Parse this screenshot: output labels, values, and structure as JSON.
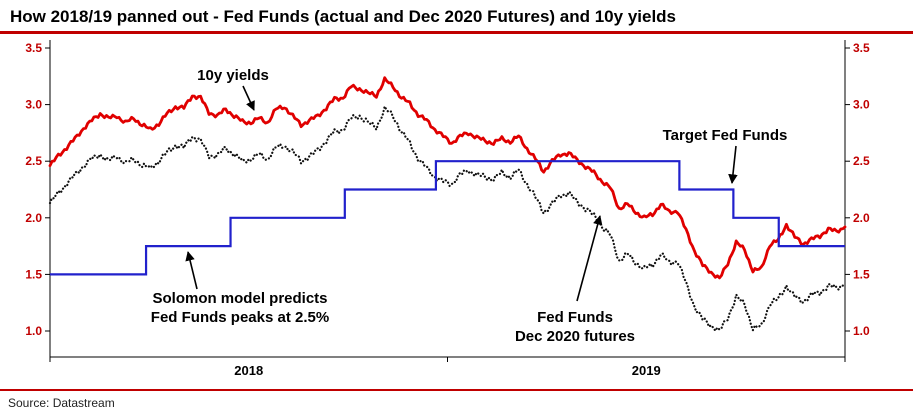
{
  "footer": {
    "source": "Source: Datastream"
  },
  "chart_data": {
    "type": "line",
    "title": "How 2018/19 panned out - Fed Funds (actual and Dec 2020 Futures) and 10y yields",
    "title_underline_color": "#c00000",
    "x_axis": {
      "start": "Jan 2018",
      "end": "Dec 2019",
      "unit": "month",
      "year_labels": [
        {
          "label": "2018",
          "center_month": 6
        },
        {
          "label": "2019",
          "center_month": 18
        }
      ]
    },
    "y_axis": {
      "ticks": [
        3.5,
        3.0,
        2.5,
        2.0,
        1.5,
        1.0
      ],
      "range": [
        0.77,
        3.57
      ],
      "sides": "both",
      "tick_color": "#c00000",
      "grid": false
    },
    "legend": "annotated labels with arrows, no legend box",
    "series": [
      {
        "name": "10y yields",
        "type": "line",
        "style": "solid",
        "color": "#e00000",
        "points_per_month": 4,
        "values": [
          2.46,
          2.55,
          2.62,
          2.7,
          2.79,
          2.86,
          2.92,
          2.88,
          2.9,
          2.84,
          2.88,
          2.82,
          2.78,
          2.83,
          2.92,
          2.98,
          2.97,
          3.08,
          3.06,
          2.93,
          2.9,
          2.96,
          2.9,
          2.85,
          2.84,
          2.88,
          2.84,
          2.96,
          2.98,
          2.9,
          2.82,
          2.86,
          2.9,
          2.97,
          3.05,
          3.06,
          3.16,
          3.14,
          3.1,
          3.08,
          3.22,
          3.16,
          3.06,
          3.01,
          2.91,
          2.86,
          2.78,
          2.72,
          2.66,
          2.72,
          2.75,
          2.71,
          2.68,
          2.66,
          2.7,
          2.67,
          2.72,
          2.61,
          2.52,
          2.41,
          2.5,
          2.56,
          2.57,
          2.51,
          2.45,
          2.4,
          2.32,
          2.26,
          2.08,
          2.12,
          2.05,
          2.0,
          2.03,
          2.12,
          2.05,
          2.06,
          1.89,
          1.71,
          1.58,
          1.52,
          1.46,
          1.6,
          1.78,
          1.72,
          1.53,
          1.55,
          1.76,
          1.8,
          1.94,
          1.83,
          1.77,
          1.81,
          1.84,
          1.9,
          1.88,
          1.92
        ]
      },
      {
        "name": "Fed Funds Dec 2020 futures",
        "type": "line",
        "style": "dotted",
        "color": "#111111",
        "points_per_month": 4,
        "values": [
          2.13,
          2.22,
          2.3,
          2.38,
          2.46,
          2.52,
          2.56,
          2.5,
          2.55,
          2.48,
          2.52,
          2.46,
          2.44,
          2.5,
          2.58,
          2.64,
          2.62,
          2.72,
          2.68,
          2.55,
          2.55,
          2.62,
          2.56,
          2.5,
          2.52,
          2.56,
          2.52,
          2.62,
          2.64,
          2.58,
          2.5,
          2.54,
          2.6,
          2.68,
          2.76,
          2.78,
          2.88,
          2.9,
          2.84,
          2.8,
          2.96,
          2.9,
          2.76,
          2.66,
          2.52,
          2.44,
          2.36,
          2.32,
          2.3,
          2.38,
          2.42,
          2.38,
          2.36,
          2.34,
          2.4,
          2.36,
          2.42,
          2.3,
          2.18,
          2.05,
          2.12,
          2.2,
          2.22,
          2.14,
          2.08,
          2.02,
          1.92,
          1.84,
          1.62,
          1.68,
          1.6,
          1.55,
          1.58,
          1.68,
          1.6,
          1.62,
          1.42,
          1.22,
          1.1,
          1.05,
          1.0,
          1.12,
          1.3,
          1.24,
          1.02,
          1.04,
          1.24,
          1.28,
          1.4,
          1.3,
          1.26,
          1.32,
          1.34,
          1.4,
          1.38,
          1.42
        ]
      },
      {
        "name": "Target Fed Funds",
        "type": "step",
        "style": "step",
        "color": "#2121cc",
        "unit_x": "months since Jan 2018",
        "segments": [
          [
            0,
            2.9,
            1.5
          ],
          [
            2.9,
            5.45,
            1.75
          ],
          [
            5.45,
            8.9,
            2.0
          ],
          [
            8.9,
            11.65,
            2.25
          ],
          [
            11.65,
            19.0,
            2.5
          ],
          [
            19.0,
            20.63,
            2.25
          ],
          [
            20.63,
            22.0,
            2.0
          ],
          [
            22.0,
            24.0,
            1.75
          ]
        ]
      }
    ],
    "annotations": [
      {
        "id": "ann-10y-yields",
        "lines": [
          "10y yields"
        ]
      },
      {
        "id": "ann-target-fed-funds",
        "lines": [
          "Target Fed Funds"
        ]
      },
      {
        "id": "ann-solomon",
        "lines": [
          "Solomon model predicts",
          "Fed Funds peaks at 2.5%"
        ]
      },
      {
        "id": "ann-futures",
        "lines": [
          "Fed Funds",
          "Dec 2020 futures"
        ]
      }
    ]
  }
}
